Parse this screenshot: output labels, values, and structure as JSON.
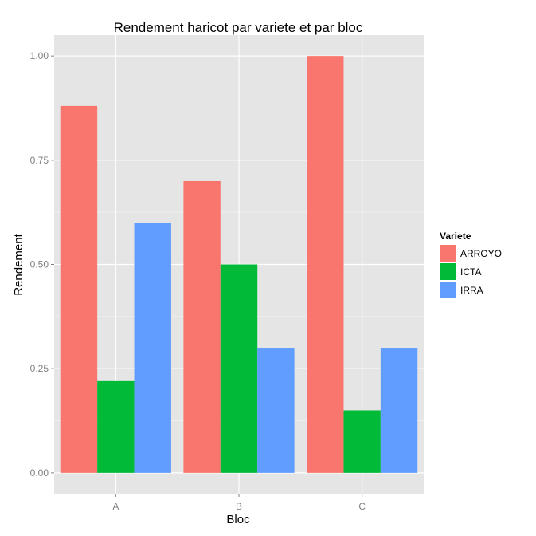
{
  "chart_data": {
    "type": "bar",
    "title": "Rendement haricot par variete et par bloc",
    "xlabel": "Bloc",
    "ylabel": "Rendement",
    "categories": [
      "A",
      "B",
      "C"
    ],
    "series": [
      {
        "name": "ARROYO",
        "values": [
          0.88,
          0.7,
          1.0
        ],
        "color": "#F8766D"
      },
      {
        "name": "ICTA",
        "values": [
          0.22,
          0.5,
          0.15
        ],
        "color": "#00BA38"
      },
      {
        "name": "IRRA",
        "values": [
          0.6,
          0.3,
          0.3
        ],
        "color": "#619CFF"
      }
    ],
    "yticks": [
      0.0,
      0.25,
      0.5,
      0.75,
      1.0
    ],
    "ytick_labels": [
      "0.00",
      "0.25",
      "0.50",
      "0.75",
      "1.00"
    ],
    "ylim": [
      -0.05,
      1.05
    ],
    "grid": true,
    "panel_color": "#E5E5E5",
    "grid_color": "#FFFFFF",
    "legend": {
      "title": "Variete",
      "position": "right"
    }
  }
}
